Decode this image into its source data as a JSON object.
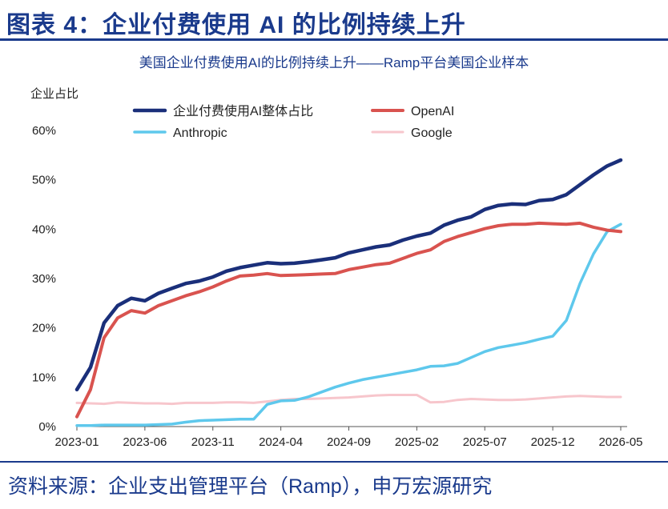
{
  "figure": {
    "title": "图表 4：企业付费使用 AI 的比例持续上升",
    "source": "资料来源：企业支出管理平台（Ramp），申万宏源研究"
  },
  "chart_data": {
    "type": "line",
    "title": "美国企业付费使用AI的比例持续上升——Ramp平台美国企业样本",
    "ylabel": "企业占比",
    "xlabel": "",
    "ylim": [
      0,
      60
    ],
    "yticks": [
      "0%",
      "10%",
      "20%",
      "30%",
      "40%",
      "50%",
      "60%"
    ],
    "xticks": [
      "2023-01",
      "2023-06",
      "2023-11",
      "2024-04",
      "2024-09",
      "2025-02",
      "2025-07",
      "2025-12",
      "2026-05"
    ],
    "grid": false,
    "legend_position": "top-left",
    "x": [
      "2023-01",
      "2023-02",
      "2023-03",
      "2023-04",
      "2023-05",
      "2023-06",
      "2023-07",
      "2023-08",
      "2023-09",
      "2023-10",
      "2023-11",
      "2023-12",
      "2024-01",
      "2024-02",
      "2024-03",
      "2024-04",
      "2024-05",
      "2024-06",
      "2024-07",
      "2024-08",
      "2024-09",
      "2024-10",
      "2024-11",
      "2024-12",
      "2025-01",
      "2025-02",
      "2025-03",
      "2025-04",
      "2025-05",
      "2025-06",
      "2025-07",
      "2025-08",
      "2025-09",
      "2025-10",
      "2025-11",
      "2025-12",
      "2026-01",
      "2026-02",
      "2026-03",
      "2026-04",
      "2026-05"
    ],
    "series": [
      {
        "name": "企业付费使用AI整体占比",
        "color": "#1a2f7a",
        "width": 4.5,
        "values": [
          7.5,
          12,
          21,
          24.5,
          26,
          25.5,
          27,
          28,
          29,
          29.5,
          30.3,
          31.5,
          32.2,
          32.7,
          33.2,
          33.0,
          33.1,
          33.4,
          33.8,
          34.2,
          35.2,
          35.8,
          36.4,
          36.8,
          37.8,
          38.6,
          39.2,
          40.8,
          41.8,
          42.5,
          44,
          44.8,
          45.1,
          45,
          45.8,
          46,
          47,
          49,
          51,
          52.8,
          54
        ]
      },
      {
        "name": "OpenAI",
        "color": "#d9534f",
        "width": 4,
        "values": [
          2,
          7.5,
          18,
          22,
          23.5,
          23,
          24.5,
          25.5,
          26.5,
          27.3,
          28.3,
          29.5,
          30.5,
          30.7,
          31,
          30.6,
          30.7,
          30.8,
          30.9,
          31,
          31.8,
          32.3,
          32.8,
          33.1,
          34.1,
          35.1,
          35.8,
          37.5,
          38.5,
          39.3,
          40.1,
          40.7,
          41,
          41,
          41.2,
          41.1,
          41,
          41.2,
          40.4,
          39.8,
          39.5
        ]
      },
      {
        "name": "Anthropic",
        "color": "#5ec8ec",
        "width": 3.5,
        "values": [
          0.2,
          0.2,
          0.3,
          0.3,
          0.3,
          0.3,
          0.4,
          0.5,
          0.9,
          1.2,
          1.3,
          1.4,
          1.5,
          1.5,
          4.5,
          5.2,
          5.3,
          6,
          7,
          8,
          8.8,
          9.5,
          10,
          10.5,
          11,
          11.5,
          12.2,
          12.3,
          12.8,
          14,
          15.2,
          16,
          16.5,
          17,
          17.7,
          18.3,
          21.5,
          29,
          35,
          39.5,
          41
        ]
      },
      {
        "name": "Google",
        "color": "#f7c6cc",
        "width": 3,
        "values": [
          4.8,
          4.7,
          4.6,
          4.9,
          4.8,
          4.7,
          4.7,
          4.6,
          4.8,
          4.8,
          4.8,
          4.9,
          4.9,
          4.8,
          5.1,
          5.4,
          5.6,
          5.6,
          5.7,
          5.8,
          5.9,
          6.1,
          6.3,
          6.4,
          6.4,
          6.4,
          4.9,
          5.0,
          5.4,
          5.6,
          5.5,
          5.4,
          5.4,
          5.5,
          5.7,
          5.9,
          6.1,
          6.2,
          6.1,
          6.0,
          6.0
        ]
      }
    ]
  }
}
